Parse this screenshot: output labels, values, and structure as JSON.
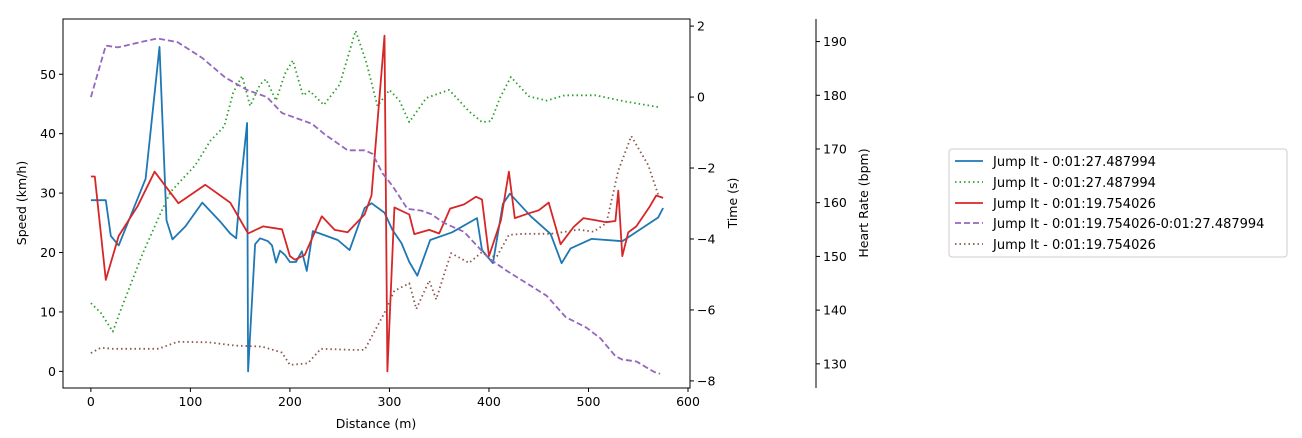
{
  "chart_data": {
    "type": "line",
    "xlabel": "Distance (m)",
    "xlim": [
      -28,
      602
    ],
    "xticks": [
      0,
      100,
      200,
      300,
      400,
      500,
      600
    ],
    "axes": [
      {
        "id": "speed",
        "label": "Speed (km/h)",
        "ylim": [
          -2.8,
          59.3
        ],
        "ticks": [
          0,
          10,
          20,
          30,
          40,
          50
        ]
      },
      {
        "id": "time",
        "label": "Time (s)",
        "ylim": [
          -8.2,
          2.2
        ],
        "ticks": [
          -8,
          -6,
          -4,
          -2,
          0,
          2
        ]
      },
      {
        "id": "hr",
        "label": "Heart Rate (bpm)",
        "ylim": [
          125.5,
          194.2
        ],
        "ticks": [
          130,
          140,
          150,
          160,
          170,
          180,
          190
        ]
      }
    ],
    "legend_position": "right",
    "series": [
      {
        "name": "Jump It - 0:01:27.487994",
        "axis": "speed",
        "color": "#1f77b4",
        "style": "solid",
        "points": [
          [
            0,
            28.8
          ],
          [
            15,
            28.8
          ],
          [
            20,
            22.8
          ],
          [
            28,
            21.2
          ],
          [
            55,
            32.4
          ],
          [
            69,
            54.6
          ],
          [
            76,
            25.4
          ],
          [
            82,
            22.2
          ],
          [
            95,
            24.4
          ],
          [
            112,
            28.4
          ],
          [
            130,
            25.2
          ],
          [
            140,
            23.2
          ],
          [
            146,
            22.4
          ],
          [
            150,
            30.6
          ],
          [
            157,
            41.8
          ],
          [
            158,
            0
          ],
          [
            165,
            21.4
          ],
          [
            170,
            22.4
          ],
          [
            178,
            21.9
          ],
          [
            182,
            21.2
          ],
          [
            186,
            18.3
          ],
          [
            190,
            20.3
          ],
          [
            195,
            19.6
          ],
          [
            200,
            18.4
          ],
          [
            206,
            18.4
          ],
          [
            212,
            20.2
          ],
          [
            217,
            16.9
          ],
          [
            223,
            23.6
          ],
          [
            230,
            23.2
          ],
          [
            248,
            22.1
          ],
          [
            260,
            20.4
          ],
          [
            275,
            27.5
          ],
          [
            282,
            28.3
          ],
          [
            295,
            26.7
          ],
          [
            303,
            23.8
          ],
          [
            312,
            21.6
          ],
          [
            320,
            18.4
          ],
          [
            328,
            16.1
          ],
          [
            341,
            22.1
          ],
          [
            363,
            23.4
          ],
          [
            388,
            25.8
          ],
          [
            393,
            20.4
          ],
          [
            404,
            18.2
          ],
          [
            414,
            28.2
          ],
          [
            421,
            29.9
          ],
          [
            442,
            26.1
          ],
          [
            462,
            23.1
          ],
          [
            473,
            18.2
          ],
          [
            482,
            20.7
          ],
          [
            503,
            22.3
          ],
          [
            534,
            21.9
          ],
          [
            570,
            25.9
          ],
          [
            575,
            27.5
          ]
        ]
      },
      {
        "name": "Jump It - 0:01:27.487994",
        "axis": "hr",
        "color": "#2ca02c",
        "style": "dotted",
        "points": [
          [
            0,
            141.3
          ],
          [
            10,
            139.5
          ],
          [
            22,
            136
          ],
          [
            30,
            140
          ],
          [
            52,
            150.5
          ],
          [
            70,
            158
          ],
          [
            80,
            162
          ],
          [
            90,
            164
          ],
          [
            105,
            167
          ],
          [
            120,
            171.5
          ],
          [
            134,
            174.2
          ],
          [
            143,
            180.5
          ],
          [
            152,
            183.6
          ],
          [
            160,
            178
          ],
          [
            170,
            182
          ],
          [
            176,
            183
          ],
          [
            186,
            179
          ],
          [
            195,
            184
          ],
          [
            203,
            186.5
          ],
          [
            213,
            180
          ],
          [
            220,
            180.8
          ],
          [
            234,
            178.2
          ],
          [
            250,
            182
          ],
          [
            266,
            192
          ],
          [
            277,
            186
          ],
          [
            288,
            178
          ],
          [
            300,
            181
          ],
          [
            310,
            179
          ],
          [
            320,
            175
          ],
          [
            337,
            179.5
          ],
          [
            360,
            181
          ],
          [
            380,
            177
          ],
          [
            393,
            175
          ],
          [
            402,
            175.2
          ],
          [
            411,
            179.5
          ],
          [
            422,
            183.4
          ],
          [
            440,
            179.8
          ],
          [
            458,
            179
          ],
          [
            476,
            180
          ],
          [
            507,
            180
          ],
          [
            538,
            178.8
          ],
          [
            570,
            177.8
          ]
        ]
      },
      {
        "name": "Jump It - 0:01:19.754026",
        "axis": "speed",
        "color": "#d62728",
        "style": "solid",
        "points": [
          [
            0,
            32.8
          ],
          [
            4,
            32.8
          ],
          [
            15,
            15.4
          ],
          [
            28,
            22.8
          ],
          [
            47,
            27.8
          ],
          [
            64,
            33.6
          ],
          [
            88,
            28.3
          ],
          [
            115,
            31.4
          ],
          [
            140,
            28.4
          ],
          [
            158,
            23.2
          ],
          [
            173,
            24.4
          ],
          [
            192,
            23.9
          ],
          [
            200,
            19.4
          ],
          [
            205,
            18.8
          ],
          [
            215,
            19.6
          ],
          [
            232,
            26.1
          ],
          [
            245,
            23.8
          ],
          [
            258,
            23.4
          ],
          [
            275,
            26.4
          ],
          [
            282,
            29.6
          ],
          [
            295,
            56.5
          ],
          [
            298,
            0
          ],
          [
            305,
            27.6
          ],
          [
            320,
            26.4
          ],
          [
            325,
            23.1
          ],
          [
            340,
            23.8
          ],
          [
            350,
            23.2
          ],
          [
            361,
            27.4
          ],
          [
            375,
            28.1
          ],
          [
            387,
            29.4
          ],
          [
            393,
            28.9
          ],
          [
            400,
            19.4
          ],
          [
            412,
            25.4
          ],
          [
            420,
            33.6
          ],
          [
            426,
            25.8
          ],
          [
            440,
            26.6
          ],
          [
            450,
            27.1
          ],
          [
            460,
            28.4
          ],
          [
            472,
            21.4
          ],
          [
            485,
            24.3
          ],
          [
            495,
            25.8
          ],
          [
            508,
            25.4
          ],
          [
            518,
            25.1
          ],
          [
            527,
            25.3
          ],
          [
            530,
            30.4
          ],
          [
            534,
            19.4
          ],
          [
            540,
            23.4
          ],
          [
            548,
            24.4
          ],
          [
            561,
            27.6
          ],
          [
            568,
            29.6
          ],
          [
            575,
            29.2
          ]
        ]
      },
      {
        "name": "Jump It - 0:01:19.754026-0:01:27.487994",
        "axis": "time",
        "color": "#9467bd",
        "style": "dashed",
        "points": [
          [
            0,
            0
          ],
          [
            15,
            1.45
          ],
          [
            27,
            1.4
          ],
          [
            50,
            1.55
          ],
          [
            67,
            1.65
          ],
          [
            87,
            1.55
          ],
          [
            112,
            1.1
          ],
          [
            135,
            0.55
          ],
          [
            157,
            0.2
          ],
          [
            177,
            0
          ],
          [
            192,
            -0.45
          ],
          [
            222,
            -0.75
          ],
          [
            235,
            -1.05
          ],
          [
            258,
            -1.5
          ],
          [
            275,
            -1.5
          ],
          [
            283,
            -1.6
          ],
          [
            293,
            -2.15
          ],
          [
            303,
            -2.5
          ],
          [
            318,
            -3.15
          ],
          [
            332,
            -3.2
          ],
          [
            342,
            -3.3
          ],
          [
            355,
            -3.55
          ],
          [
            375,
            -3.8
          ],
          [
            390,
            -4.25
          ],
          [
            400,
            -4.55
          ],
          [
            418,
            -4.9
          ],
          [
            438,
            -5.25
          ],
          [
            458,
            -5.6
          ],
          [
            477,
            -6.2
          ],
          [
            498,
            -6.5
          ],
          [
            512,
            -6.8
          ],
          [
            527,
            -7.3
          ],
          [
            534,
            -7.4
          ],
          [
            548,
            -7.45
          ],
          [
            566,
            -7.75
          ],
          [
            572,
            -7.8
          ]
        ]
      },
      {
        "name": "Jump It - 0:01:19.754026",
        "axis": "hr",
        "color": "#8c564b",
        "style": "dotted",
        "points": [
          [
            0,
            132
          ],
          [
            10,
            133
          ],
          [
            22,
            132.8
          ],
          [
            40,
            132.8
          ],
          [
            68,
            132.8
          ],
          [
            87,
            134.1
          ],
          [
            118,
            134
          ],
          [
            145,
            133.4
          ],
          [
            172,
            133.2
          ],
          [
            192,
            132.1
          ],
          [
            200,
            129.8
          ],
          [
            218,
            130.1
          ],
          [
            231,
            132.8
          ],
          [
            264,
            132.6
          ],
          [
            275,
            132.6
          ],
          [
            295,
            139.5
          ],
          [
            305,
            143.6
          ],
          [
            320,
            145
          ],
          [
            327,
            140.2
          ],
          [
            340,
            145.5
          ],
          [
            347,
            142
          ],
          [
            356,
            147.3
          ],
          [
            362,
            150.6
          ],
          [
            380,
            148.8
          ],
          [
            393,
            150.8
          ],
          [
            400,
            150
          ],
          [
            408,
            150
          ],
          [
            420,
            154
          ],
          [
            435,
            154.2
          ],
          [
            462,
            154.2
          ],
          [
            470,
            154.4
          ],
          [
            490,
            155
          ],
          [
            505,
            154.6
          ],
          [
            518,
            156.2
          ],
          [
            530,
            166
          ],
          [
            543,
            172.4
          ],
          [
            560,
            167
          ],
          [
            571,
            161
          ]
        ]
      }
    ]
  }
}
